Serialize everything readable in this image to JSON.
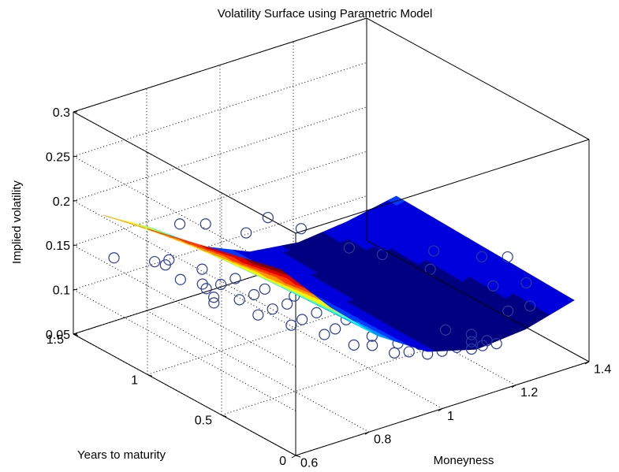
{
  "chart_data": {
    "type": "surface-3d",
    "title": "Volatility Surface using Parametric Model",
    "xlabel": "Moneyness",
    "ylabel": "Years to maturity",
    "zlabel": "Implied volatility",
    "xlim": [
      0.6,
      1.4
    ],
    "ylim": [
      0,
      1.5
    ],
    "zlim": [
      0.05,
      0.3
    ],
    "x_ticks": [
      "0.6",
      "0.8",
      "1",
      "1.2",
      "1.4"
    ],
    "y_ticks": [
      "0",
      "0.5",
      "1",
      "1.5"
    ],
    "z_ticks": [
      "0.05",
      "0.1",
      "0.15",
      "0.2",
      "0.25",
      "0.3"
    ],
    "grid": true,
    "colormap": "jet",
    "surface": {
      "moneyness": [
        0.6,
        0.73,
        0.86,
        1.0,
        1.13,
        1.26,
        1.4
      ],
      "maturity": [
        0.1,
        0.4,
        0.7,
        1.0,
        1.3
      ],
      "implied_volatility": [
        [
          0.25,
          0.19,
          0.14,
          0.105,
          0.09,
          0.095,
          0.11
        ],
        [
          0.238,
          0.185,
          0.138,
          0.105,
          0.092,
          0.098,
          0.112
        ],
        [
          0.226,
          0.18,
          0.136,
          0.106,
          0.095,
          0.101,
          0.114
        ],
        [
          0.214,
          0.175,
          0.134,
          0.107,
          0.098,
          0.104,
          0.116
        ],
        [
          0.202,
          0.17,
          0.132,
          0.108,
          0.101,
          0.107,
          0.118
        ]
      ]
    },
    "series": [
      {
        "name": "",
        "marker": "circle",
        "color": "#2b3b9b",
        "points": [
          [
            0.63,
            1.3,
            0.15
          ],
          [
            0.66,
            1.1,
            0.16
          ],
          [
            0.66,
            0.7,
            0.15
          ],
          [
            0.69,
            1.0,
            0.145
          ],
          [
            0.7,
            0.8,
            0.142
          ],
          [
            0.72,
            0.9,
            0.14
          ],
          [
            0.73,
            1.2,
            0.138
          ],
          [
            0.74,
            0.6,
            0.135
          ],
          [
            0.75,
            1.0,
            0.132
          ],
          [
            0.77,
            0.8,
            0.13
          ],
          [
            0.78,
            1.3,
            0.128
          ],
          [
            0.79,
            0.5,
            0.126
          ],
          [
            0.8,
            1.0,
            0.125
          ],
          [
            0.82,
            0.7,
            0.122
          ],
          [
            0.83,
            1.2,
            0.12
          ],
          [
            0.84,
            0.4,
            0.118
          ],
          [
            0.85,
            0.9,
            0.116
          ],
          [
            0.86,
            0.6,
            0.114
          ],
          [
            0.88,
            1.1,
            0.112
          ],
          [
            0.88,
            0.3,
            0.11
          ],
          [
            0.9,
            0.8,
            0.108
          ],
          [
            0.91,
            0.5,
            0.106
          ],
          [
            0.92,
            1.0,
            0.104
          ],
          [
            0.93,
            0.3,
            0.103
          ],
          [
            0.94,
            0.7,
            0.102
          ],
          [
            0.95,
            0.2,
            0.101
          ],
          [
            0.96,
            0.9,
            0.1
          ],
          [
            0.97,
            0.4,
            0.099
          ],
          [
            0.98,
            0.6,
            0.098
          ],
          [
            0.99,
            0.2,
            0.097
          ],
          [
            1.0,
            0.8,
            0.097
          ],
          [
            1.0,
            0.3,
            0.096
          ],
          [
            1.01,
            0.5,
            0.096
          ],
          [
            1.02,
            0.15,
            0.095
          ],
          [
            1.03,
            0.7,
            0.095
          ],
          [
            1.04,
            0.25,
            0.094
          ],
          [
            1.05,
            0.4,
            0.094
          ],
          [
            1.06,
            0.15,
            0.093
          ],
          [
            1.07,
            0.6,
            0.094
          ],
          [
            1.08,
            0.2,
            0.093
          ],
          [
            1.09,
            0.35,
            0.093
          ],
          [
            1.1,
            0.15,
            0.092
          ],
          [
            1.11,
            0.25,
            0.093
          ],
          [
            1.12,
            0.1,
            0.092
          ],
          [
            1.13,
            0.3,
            0.094
          ],
          [
            1.14,
            0.15,
            0.093
          ],
          [
            1.15,
            0.1,
            0.092
          ],
          [
            1.16,
            0.2,
            0.094
          ],
          [
            1.17,
            0.12,
            0.093
          ],
          [
            1.18,
            0.08,
            0.092
          ],
          [
            0.85,
            1.4,
            0.15
          ],
          [
            0.9,
            1.35,
            0.148
          ],
          [
            0.95,
            1.2,
            0.145
          ],
          [
            1.05,
            1.3,
            0.14
          ],
          [
            1.1,
            1.2,
            0.13
          ],
          [
            1.15,
            1.0,
            0.12
          ],
          [
            1.2,
            0.9,
            0.115
          ],
          [
            1.25,
            0.7,
            0.11
          ],
          [
            1.3,
            0.8,
            0.115
          ],
          [
            1.3,
            0.4,
            0.112
          ],
          [
            1.35,
            0.6,
            0.12
          ],
          [
            1.35,
            0.3,
            0.118
          ],
          [
            1.38,
            0.5,
            0.125
          ],
          [
            1.32,
            0.2,
            0.105
          ],
          [
            1.28,
            0.25,
            0.1
          ]
        ]
      }
    ]
  }
}
